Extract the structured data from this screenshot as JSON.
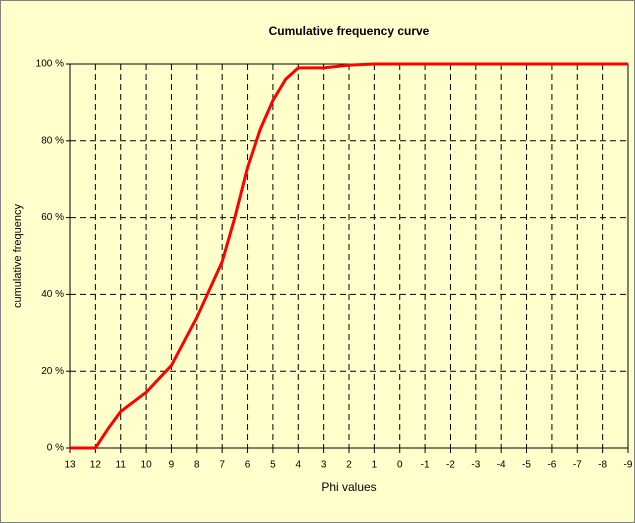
{
  "chart_data": {
    "type": "line",
    "title": "Cumulative frequency curve",
    "x_label": "Phi values",
    "y_label": "cumulative frequency",
    "x": [
      13,
      12,
      11.5,
      11,
      10.5,
      10,
      9,
      8,
      7,
      6.5,
      6,
      5.5,
      5,
      4.5,
      4,
      3.5,
      3,
      2,
      1,
      0,
      -1,
      -2,
      -3,
      -4,
      -5,
      -6,
      -7,
      -8,
      -9
    ],
    "values": [
      0,
      0,
      5,
      9.5,
      12,
      14.5,
      21.5,
      34,
      48.5,
      60,
      73,
      83,
      90.5,
      96,
      99,
      99,
      99,
      99.7,
      100,
      100,
      100,
      100,
      100,
      100,
      100,
      100,
      100,
      100,
      100
    ],
    "color": "#ff0000",
    "xlim": [
      13,
      -9
    ],
    "xticks": [
      13,
      12,
      11,
      10,
      9,
      8,
      7,
      6,
      5,
      4,
      3,
      2,
      1,
      0,
      -1,
      -2,
      -3,
      -4,
      -5,
      -6,
      -7,
      -8,
      -9
    ],
    "ylim": [
      0,
      100
    ],
    "yticks": [
      {
        "value": 0,
        "label": "0 %"
      },
      {
        "value": 20,
        "label": "20 %"
      },
      {
        "value": 40,
        "label": "40 %"
      },
      {
        "value": 60,
        "label": "60 %"
      },
      {
        "value": 80,
        "label": "80 %"
      },
      {
        "value": 100,
        "label": "100 %"
      }
    ],
    "grid": true
  }
}
